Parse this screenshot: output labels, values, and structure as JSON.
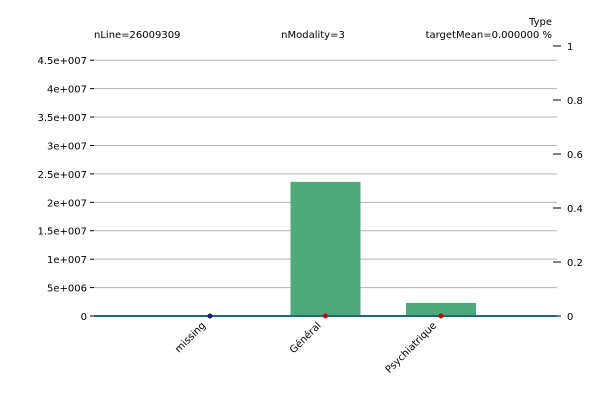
{
  "chart_data": {
    "type": "bar",
    "title": "Type",
    "header": {
      "left": "nLine=26009309",
      "center": "nModality=3",
      "right": "targetMean=0.000000 %"
    },
    "categories": [
      "missing",
      "Général",
      "Psychiatrique"
    ],
    "series": [
      {
        "values": [
          0,
          23600000,
          2300000
        ],
        "axis": "left"
      },
      {
        "values": [
          0,
          0,
          0
        ],
        "axis": "right",
        "marker": "point"
      }
    ],
    "y_left": {
      "lim": [
        0,
        47500000
      ],
      "ticks": [
        0,
        5000000,
        10000000,
        15000000,
        20000000,
        25000000,
        30000000,
        35000000,
        40000000,
        45000000
      ],
      "tick_labels": [
        "0",
        "5e+006",
        "1e+007",
        "1.5e+007",
        "2e+007",
        "2.5e+007",
        "3e+007",
        "3.5e+007",
        "4e+007",
        "4.5e+007"
      ]
    },
    "y_right": {
      "lim": [
        0,
        1
      ],
      "ticks": [
        0,
        0.2,
        0.4,
        0.6,
        0.8,
        1
      ],
      "tick_labels": [
        "0",
        "0.2",
        "0.4",
        "0.6",
        "0.8",
        "1"
      ]
    },
    "grid": true,
    "colors": {
      "bar": "#4ea87a",
      "marker_missing": "#1a1a7a",
      "marker": "#cc0000",
      "grid": "#b3b3b3",
      "baseline": "#1a6a7a"
    }
  }
}
